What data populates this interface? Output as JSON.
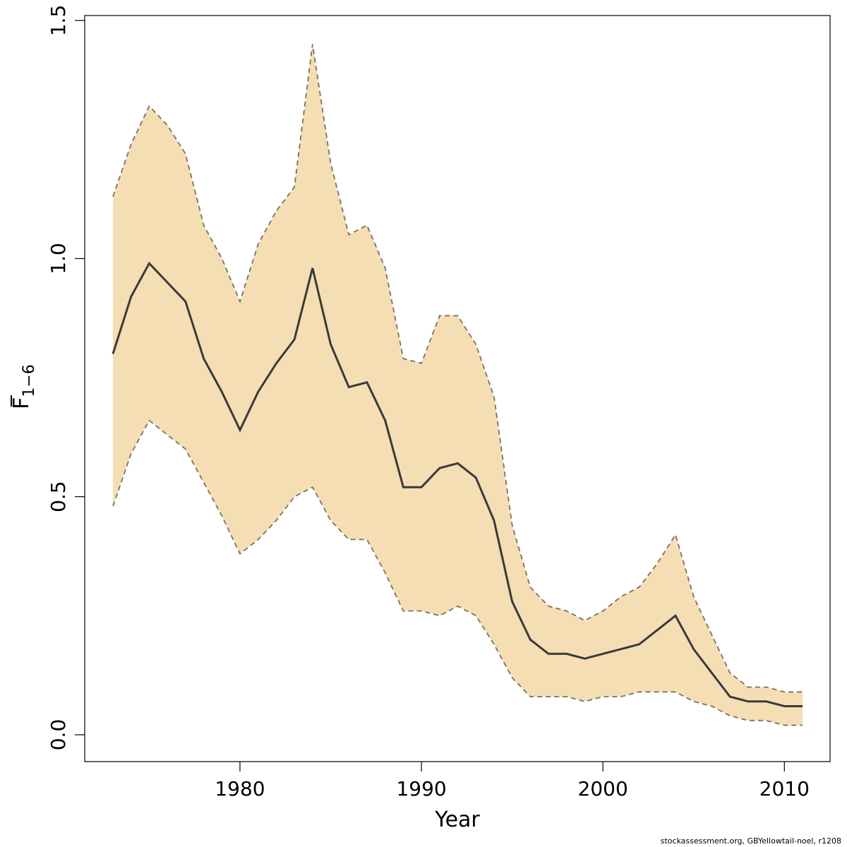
{
  "chart_data": {
    "type": "area",
    "title": "",
    "xlabel": "Year",
    "ylabel": {
      "main": "F",
      "subscript": "1−6"
    },
    "xlim": [
      1973,
      2011
    ],
    "ylim": [
      0.0,
      1.5
    ],
    "x_ticks": [
      1980,
      1990,
      2000,
      2010
    ],
    "y_ticks": [
      0.0,
      0.5,
      1.0,
      1.5
    ],
    "y_tick_labels": [
      "0.0",
      "0.5",
      "1.0",
      "1.5"
    ],
    "grid": false,
    "legend": "none",
    "colors": {
      "band_fill": "#f5deb3",
      "band_edge": "#7a7060",
      "estimate_line": "#3a3a3a",
      "axis": "#000000"
    },
    "x": [
      1973,
      1974,
      1975,
      1976,
      1977,
      1978,
      1979,
      1980,
      1981,
      1982,
      1983,
      1984,
      1985,
      1986,
      1987,
      1988,
      1989,
      1990,
      1991,
      1992,
      1993,
      1994,
      1995,
      1996,
      1997,
      1998,
      1999,
      2000,
      2001,
      2002,
      2003,
      2004,
      2005,
      2006,
      2007,
      2008,
      2009,
      2010,
      2011
    ],
    "series": [
      {
        "role": "estimate",
        "values": [
          0.8,
          0.92,
          0.99,
          0.95,
          0.91,
          0.79,
          0.72,
          0.64,
          0.72,
          0.78,
          0.83,
          0.98,
          0.82,
          0.73,
          0.74,
          0.66,
          0.52,
          0.52,
          0.56,
          0.57,
          0.54,
          0.45,
          0.28,
          0.2,
          0.17,
          0.17,
          0.16,
          0.17,
          0.18,
          0.19,
          0.22,
          0.25,
          0.18,
          0.13,
          0.08,
          0.07,
          0.07,
          0.06,
          0.06
        ]
      },
      {
        "role": "upper",
        "values": [
          1.13,
          1.24,
          1.32,
          1.28,
          1.22,
          1.07,
          1.0,
          0.91,
          1.03,
          1.1,
          1.15,
          1.45,
          1.2,
          1.05,
          1.07,
          0.98,
          0.79,
          0.78,
          0.88,
          0.88,
          0.82,
          0.71,
          0.44,
          0.31,
          0.27,
          0.26,
          0.24,
          0.26,
          0.29,
          0.31,
          0.36,
          0.42,
          0.29,
          0.21,
          0.13,
          0.1,
          0.1,
          0.09,
          0.09
        ]
      },
      {
        "role": "lower",
        "values": [
          0.48,
          0.59,
          0.66,
          0.63,
          0.6,
          0.53,
          0.46,
          0.38,
          0.41,
          0.45,
          0.5,
          0.52,
          0.45,
          0.41,
          0.41,
          0.34,
          0.26,
          0.26,
          0.25,
          0.27,
          0.25,
          0.19,
          0.12,
          0.08,
          0.08,
          0.08,
          0.07,
          0.08,
          0.08,
          0.09,
          0.09,
          0.09,
          0.07,
          0.06,
          0.04,
          0.03,
          0.03,
          0.02,
          0.02
        ]
      }
    ]
  },
  "footer": {
    "source_text": "stockassessment.org, GBYellowtail-noel, r1208"
  }
}
